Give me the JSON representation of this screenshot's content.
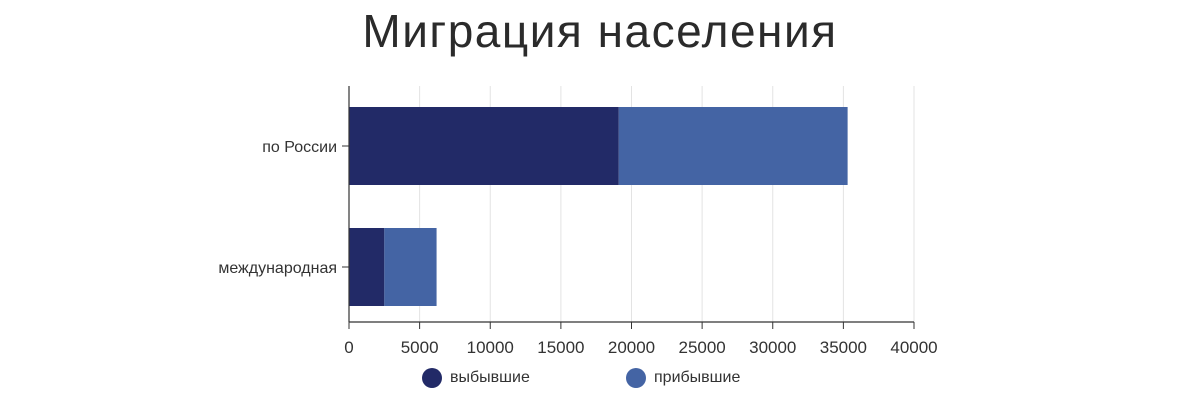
{
  "chart_data": {
    "type": "bar",
    "orientation": "horizontal",
    "stacked": true,
    "title": "Миграция населения",
    "categories": [
      "по России",
      "международная"
    ],
    "series": [
      {
        "name": "выбывшие",
        "values": [
          19100,
          2500
        ],
        "color": "#222a67"
      },
      {
        "name": "прибывшие",
        "values": [
          16200,
          3700
        ],
        "color": "#4464a4"
      }
    ],
    "xlim": [
      0,
      40000
    ],
    "xticks": [
      "0",
      "5000",
      "10000",
      "15000",
      "20000",
      "25000",
      "30000",
      "35000",
      "40000"
    ],
    "grid": "vertical",
    "legend_position": "bottom"
  }
}
